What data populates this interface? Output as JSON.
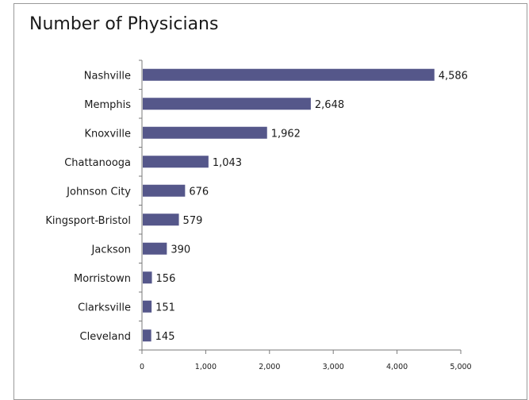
{
  "chart_data": {
    "type": "bar",
    "orientation": "horizontal",
    "title": "Number of Physicians",
    "xlabel": "",
    "ylabel": "",
    "categories": [
      "Nashville",
      "Memphis",
      "Knoxville",
      "Chattanooga",
      "Johnson City",
      "Kingsport-Bristol",
      "Jackson",
      "Morristown",
      "Clarksville",
      "Cleveland"
    ],
    "values": [
      4586,
      2648,
      1962,
      1043,
      676,
      579,
      390,
      156,
      151,
      145
    ],
    "value_labels": [
      "4,586",
      "2,648",
      "1,962",
      "1,043",
      "676",
      "579",
      "390",
      "156",
      "151",
      "145"
    ],
    "xlim": [
      0,
      5000
    ],
    "xticks": [
      0,
      1000,
      2000,
      3000,
      4000,
      5000
    ],
    "xtick_labels": [
      "0",
      "1,000",
      "2,000",
      "3,000",
      "4,000",
      "5,000"
    ],
    "bar_color": "#55578a",
    "grid": false,
    "legend": "none"
  }
}
